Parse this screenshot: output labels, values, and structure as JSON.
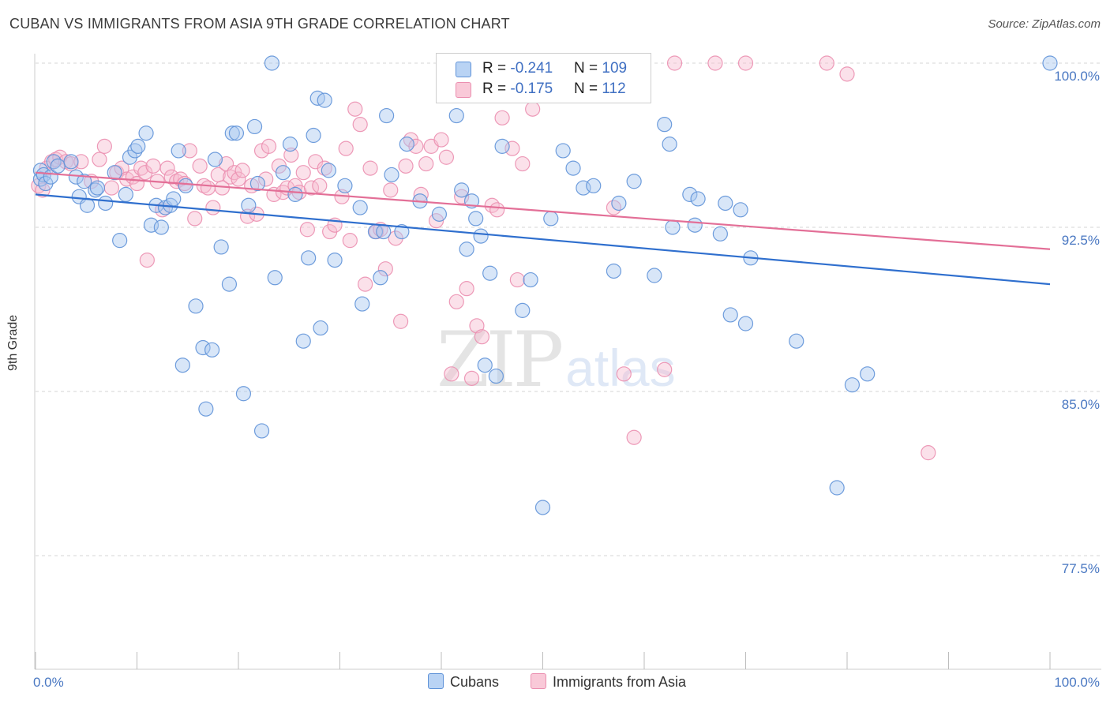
{
  "title": "CUBAN VS IMMIGRANTS FROM ASIA 9TH GRADE CORRELATION CHART",
  "source": "Source: ZipAtlas.com",
  "watermark": {
    "zip": "ZIP",
    "atlas": "atlas"
  },
  "colors": {
    "cubans_fill": "#a9c8f0",
    "cubans_stroke": "#5f92d8",
    "cubans_line": "#2f6fce",
    "asia_fill": "#f7bdd0",
    "asia_stroke": "#eb8fb0",
    "asia_line": "#e36f97",
    "tick_label": "#4a78c2",
    "grid": "#d5d5d5"
  },
  "legend": {
    "row1": {
      "r_label": "R = ",
      "r_value": "-0.241",
      "n_label": "N = ",
      "n_value": "109"
    },
    "row2": {
      "r_label": "R = ",
      "r_value": "-0.175",
      "n_label": "N = ",
      "n_value": "112"
    }
  },
  "bottom_legend": {
    "cubans": "Cubans",
    "asia": "Immigrants from Asia"
  },
  "chart_data": {
    "type": "scatter",
    "title": "CUBAN VS IMMIGRANTS FROM ASIA 9TH GRADE CORRELATION CHART",
    "xlabel": "",
    "ylabel": "9th Grade",
    "xlim": [
      0,
      100
    ],
    "ylim": [
      70.0,
      101.5
    ],
    "x_tick_labels": [
      "0.0%",
      "100.0%"
    ],
    "y_ticks": [
      {
        "value": 100.0,
        "label": "100.0%"
      },
      {
        "value": 92.5,
        "label": "92.5%"
      },
      {
        "value": 85.0,
        "label": "85.0%"
      },
      {
        "value": 77.5,
        "label": "77.5%"
      }
    ],
    "grid": "horizontal dashed",
    "legend_position": "top-center",
    "series": [
      {
        "name": "Cubans",
        "r": -0.241,
        "n": 109,
        "trend": {
          "x": [
            0,
            100
          ],
          "y": [
            94.0,
            89.9
          ]
        },
        "points": [
          [
            0.5,
            95.1
          ],
          [
            0.5,
            94.7
          ],
          [
            0.8,
            94.9
          ],
          [
            1.0,
            94.5
          ],
          [
            1.5,
            94.8
          ],
          [
            1.8,
            95.5
          ],
          [
            2.2,
            95.3
          ],
          [
            3.5,
            95.5
          ],
          [
            4.0,
            94.8
          ],
          [
            4.3,
            93.9
          ],
          [
            4.8,
            94.6
          ],
          [
            5.1,
            93.5
          ],
          [
            5.9,
            94.2
          ],
          [
            6.1,
            94.3
          ],
          [
            6.9,
            93.6
          ],
          [
            7.8,
            95.0
          ],
          [
            8.3,
            91.9
          ],
          [
            8.9,
            94.0
          ],
          [
            9.3,
            95.7
          ],
          [
            9.8,
            96.0
          ],
          [
            10.1,
            96.2
          ],
          [
            10.9,
            96.8
          ],
          [
            11.4,
            92.6
          ],
          [
            11.9,
            93.5
          ],
          [
            12.4,
            92.5
          ],
          [
            12.8,
            93.4
          ],
          [
            13.3,
            93.5
          ],
          [
            13.6,
            93.8
          ],
          [
            14.1,
            96.0
          ],
          [
            14.5,
            86.2
          ],
          [
            14.8,
            94.4
          ],
          [
            15.8,
            88.9
          ],
          [
            16.5,
            87.0
          ],
          [
            16.8,
            84.2
          ],
          [
            17.4,
            86.9
          ],
          [
            17.7,
            95.6
          ],
          [
            18.3,
            91.6
          ],
          [
            19.1,
            89.9
          ],
          [
            19.4,
            96.8
          ],
          [
            19.8,
            96.8
          ],
          [
            20.5,
            84.9
          ],
          [
            21.0,
            93.5
          ],
          [
            21.6,
            97.1
          ],
          [
            21.9,
            94.5
          ],
          [
            22.3,
            83.2
          ],
          [
            23.3,
            100.0
          ],
          [
            23.6,
            90.2
          ],
          [
            24.4,
            95.0
          ],
          [
            25.1,
            96.3
          ],
          [
            25.6,
            94.0
          ],
          [
            26.4,
            87.3
          ],
          [
            26.9,
            91.1
          ],
          [
            27.4,
            96.7
          ],
          [
            27.8,
            98.4
          ],
          [
            28.1,
            87.9
          ],
          [
            28.5,
            98.3
          ],
          [
            28.9,
            95.1
          ],
          [
            29.5,
            91.0
          ],
          [
            30.5,
            94.4
          ],
          [
            32.0,
            93.4
          ],
          [
            32.2,
            89.0
          ],
          [
            33.5,
            92.3
          ],
          [
            34.0,
            90.2
          ],
          [
            34.3,
            92.3
          ],
          [
            34.6,
            97.6
          ],
          [
            35.1,
            94.9
          ],
          [
            36.1,
            92.3
          ],
          [
            36.6,
            96.3
          ],
          [
            37.9,
            93.7
          ],
          [
            39.8,
            93.1
          ],
          [
            42.0,
            94.2
          ],
          [
            42.5,
            91.5
          ],
          [
            43.0,
            93.7
          ],
          [
            43.4,
            92.9
          ],
          [
            43.9,
            92.1
          ],
          [
            44.3,
            86.2
          ],
          [
            44.8,
            90.4
          ],
          [
            45.4,
            85.7
          ],
          [
            46.0,
            96.2
          ],
          [
            48.0,
            88.7
          ],
          [
            48.8,
            90.1
          ],
          [
            50.0,
            79.7
          ],
          [
            50.8,
            92.9
          ],
          [
            52.0,
            96.0
          ],
          [
            53.0,
            95.2
          ],
          [
            54.0,
            94.3
          ],
          [
            55.0,
            94.4
          ],
          [
            57.0,
            90.5
          ],
          [
            57.5,
            93.6
          ],
          [
            59.0,
            94.6
          ],
          [
            61.0,
            90.3
          ],
          [
            62.0,
            97.2
          ],
          [
            62.5,
            96.3
          ],
          [
            62.8,
            92.5
          ],
          [
            64.5,
            94.0
          ],
          [
            65.0,
            92.6
          ],
          [
            65.3,
            93.8
          ],
          [
            67.5,
            92.2
          ],
          [
            68.0,
            93.6
          ],
          [
            68.5,
            88.5
          ],
          [
            69.5,
            93.3
          ],
          [
            70.0,
            88.1
          ],
          [
            70.5,
            91.1
          ],
          [
            75.0,
            87.3
          ],
          [
            79.0,
            80.6
          ],
          [
            80.5,
            85.3
          ],
          [
            82.0,
            85.8
          ],
          [
            100.0,
            100.0
          ],
          [
            41.5,
            97.6
          ]
        ]
      },
      {
        "name": "Immigrants from Asia",
        "r": -0.175,
        "n": 112,
        "trend": {
          "x": [
            0,
            100
          ],
          "y": [
            95.0,
            91.5
          ]
        },
        "points": [
          [
            0.3,
            94.4
          ],
          [
            0.7,
            94.2
          ],
          [
            1.1,
            95.2
          ],
          [
            1.6,
            95.5
          ],
          [
            2.0,
            95.6
          ],
          [
            2.4,
            95.7
          ],
          [
            3.0,
            95.5
          ],
          [
            3.5,
            95.4
          ],
          [
            4.5,
            95.5
          ],
          [
            5.5,
            94.6
          ],
          [
            6.3,
            95.6
          ],
          [
            6.8,
            96.2
          ],
          [
            7.5,
            94.3
          ],
          [
            8.0,
            95.0
          ],
          [
            8.5,
            95.2
          ],
          [
            9.0,
            94.7
          ],
          [
            9.6,
            94.8
          ],
          [
            10.0,
            94.5
          ],
          [
            10.4,
            95.2
          ],
          [
            10.8,
            95.0
          ],
          [
            11.0,
            91.0
          ],
          [
            11.6,
            95.3
          ],
          [
            12.0,
            94.6
          ],
          [
            12.5,
            93.3
          ],
          [
            13.0,
            95.2
          ],
          [
            13.4,
            94.8
          ],
          [
            13.9,
            94.6
          ],
          [
            14.3,
            94.7
          ],
          [
            14.7,
            94.5
          ],
          [
            15.2,
            96.0
          ],
          [
            15.7,
            92.9
          ],
          [
            16.2,
            95.3
          ],
          [
            16.6,
            94.4
          ],
          [
            17.0,
            94.3
          ],
          [
            17.5,
            93.4
          ],
          [
            18.0,
            94.9
          ],
          [
            18.4,
            94.3
          ],
          [
            18.8,
            95.4
          ],
          [
            19.2,
            94.8
          ],
          [
            19.6,
            95.0
          ],
          [
            20.0,
            94.7
          ],
          [
            20.4,
            95.1
          ],
          [
            20.9,
            93.0
          ],
          [
            21.3,
            94.4
          ],
          [
            21.8,
            93.1
          ],
          [
            22.3,
            96.0
          ],
          [
            22.7,
            94.7
          ],
          [
            23.0,
            96.2
          ],
          [
            23.5,
            94.0
          ],
          [
            24.0,
            95.3
          ],
          [
            24.4,
            94.1
          ],
          [
            24.8,
            94.3
          ],
          [
            25.2,
            95.8
          ],
          [
            25.6,
            94.4
          ],
          [
            26.0,
            94.1
          ],
          [
            26.4,
            95.0
          ],
          [
            26.8,
            92.4
          ],
          [
            27.2,
            94.3
          ],
          [
            27.6,
            95.5
          ],
          [
            28.0,
            94.4
          ],
          [
            28.5,
            95.2
          ],
          [
            29.0,
            92.3
          ],
          [
            29.5,
            92.6
          ],
          [
            30.2,
            93.9
          ],
          [
            30.6,
            96.1
          ],
          [
            31.0,
            91.9
          ],
          [
            31.5,
            97.9
          ],
          [
            32.0,
            97.2
          ],
          [
            32.5,
            89.9
          ],
          [
            33.0,
            95.2
          ],
          [
            33.6,
            92.3
          ],
          [
            34.0,
            92.4
          ],
          [
            34.5,
            90.6
          ],
          [
            35.0,
            94.2
          ],
          [
            35.5,
            92.0
          ],
          [
            36.0,
            88.2
          ],
          [
            36.5,
            95.3
          ],
          [
            37.0,
            96.5
          ],
          [
            37.5,
            96.2
          ],
          [
            38.0,
            94.0
          ],
          [
            38.5,
            95.4
          ],
          [
            39.0,
            96.2
          ],
          [
            39.5,
            92.8
          ],
          [
            40.0,
            96.5
          ],
          [
            40.5,
            95.7
          ],
          [
            41.0,
            85.8
          ],
          [
            41.5,
            89.1
          ],
          [
            42.0,
            93.9
          ],
          [
            42.5,
            89.7
          ],
          [
            43.0,
            85.6
          ],
          [
            43.5,
            88.0
          ],
          [
            44.0,
            87.5
          ],
          [
            45.0,
            93.5
          ],
          [
            45.5,
            93.3
          ],
          [
            46.0,
            97.5
          ],
          [
            47.0,
            96.1
          ],
          [
            47.5,
            90.1
          ],
          [
            48.0,
            95.4
          ],
          [
            49.0,
            97.9
          ],
          [
            52.0,
            99.0
          ],
          [
            53.0,
            100.0
          ],
          [
            56.0,
            100.0
          ],
          [
            57.0,
            93.4
          ],
          [
            58.0,
            85.8
          ],
          [
            59.0,
            82.9
          ],
          [
            62.0,
            86.0
          ],
          [
            63.0,
            100.0
          ],
          [
            67.0,
            100.0
          ],
          [
            70.0,
            100.0
          ],
          [
            78.0,
            100.0
          ],
          [
            80.0,
            99.5
          ],
          [
            88.0,
            82.2
          ]
        ]
      }
    ]
  }
}
